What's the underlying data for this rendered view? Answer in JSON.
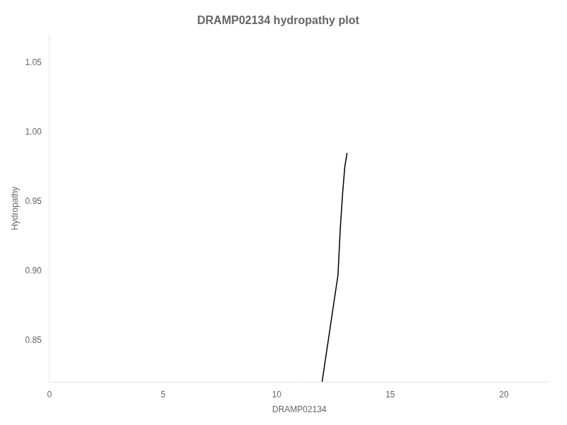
{
  "chart_data": {
    "type": "line",
    "title": "DRAMP02134 hydropathy plot",
    "x_label": "DRAMP02134",
    "y_label": "Hydropathy",
    "x": [
      12.0,
      12.1,
      12.2,
      12.3,
      12.4,
      12.5,
      12.6,
      12.7,
      12.8,
      12.9,
      13.0,
      13.1
    ],
    "values": [
      0.82,
      0.831,
      0.842,
      0.853,
      0.864,
      0.875,
      0.886,
      0.897,
      0.93,
      0.955,
      0.975,
      0.985
    ],
    "color": "#000000",
    "xlim": [
      0,
      22
    ],
    "xticks": [
      0,
      5,
      10,
      15,
      20
    ],
    "ylim": [
      0.82,
      1.07
    ],
    "yticks": [
      0.85,
      {
        "value": 0.9,
        "label": "0.90"
      },
      0.95,
      {
        "value": 1,
        "label": "1.00"
      },
      1.05
    ],
    "grid": false
  }
}
